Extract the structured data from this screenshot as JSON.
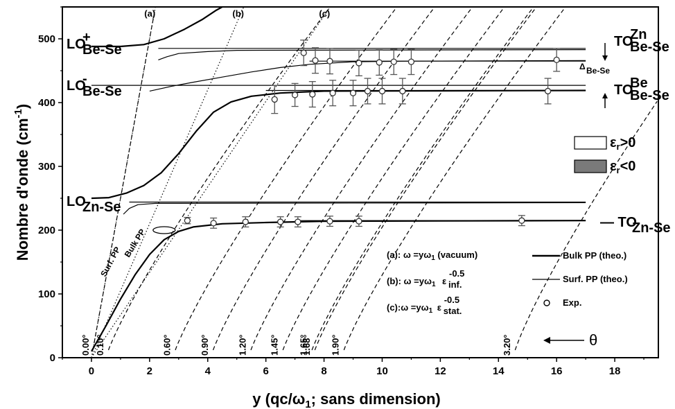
{
  "chart_data": {
    "type": "line",
    "xlabel": "y (qc/ω",
    "xlabel_sub": "1",
    "xlabel_tail": "; sans dimension)",
    "ylabel": "Nombre d'onde (cm",
    "ylabel_sup": "-1",
    "ylabel_tail": ")",
    "xlim": [
      -1,
      19.5
    ],
    "ylim": [
      0,
      550
    ],
    "x_ticks": [
      "0",
      "2",
      "4",
      "6",
      "8",
      "10",
      "12",
      "14",
      "16",
      "18"
    ],
    "y_ticks": [
      "0",
      "100",
      "200",
      "300",
      "400",
      "500"
    ],
    "mode_labels": {
      "lo_plus": {
        "base": "LO",
        "sup": "+",
        "sub": "Be-Se"
      },
      "lo_minus": {
        "base": "LO",
        "sup": "-",
        "sub": "Be-Se"
      },
      "lo_znse": {
        "base": "LO",
        "sub": "Zn-Se"
      },
      "to_zn": {
        "base": "TO",
        "sup": "Zn",
        "sub": "Be-Se"
      },
      "to_be": {
        "base": "TO",
        "sup": "Be",
        "sub": "Be-Se"
      },
      "to_znse": {
        "base": "— TO",
        "sub": "Zn-Se"
      },
      "delta": {
        "base": "Δ",
        "sub": "Be-Se"
      }
    },
    "light_line_labels": [
      "(a)",
      "(b)",
      "(c)"
    ],
    "light_line_slopes": [
      250,
      105,
      67
    ],
    "surf_pp_label": "Surf. PP",
    "bulk_pp_label": "Bulk PP",
    "epsilon_legend": [
      {
        "label": "ε",
        "sub": "r",
        "tail": ">0",
        "fill": "#ffffff"
      },
      {
        "label": "ε",
        "sub": "r",
        "tail": "<0",
        "fill": "#7a7a7a"
      }
    ],
    "formulas": [
      {
        "prefix": "(a): ω =yω",
        "sub": "1",
        "tail": " (vacuum)"
      },
      {
        "prefix": "(b): ω =yω",
        "sub": "1",
        "eps": "ε",
        "eps_sub": "inf.",
        "eps_sup": "-0.5"
      },
      {
        "prefix": "(c):ω =yω",
        "sub": "1",
        "eps": "ε",
        "eps_sub": "stat.",
        "eps_sup": "-0.5"
      }
    ],
    "legend": [
      {
        "label": "Bulk PP (theo.)",
        "style": "thick"
      },
      {
        "label": "Surf. PP (theo.)",
        "style": "thin"
      },
      {
        "label": "Exp.",
        "style": "circle"
      }
    ],
    "theta_label": "θ",
    "angles": [
      {
        "label": "0.00°",
        "x0": 0.0
      },
      {
        "label": "0.10°",
        "x0": 0.5
      },
      {
        "label": "0.60°",
        "x0": 2.8
      },
      {
        "label": "0.90°",
        "x0": 4.1
      },
      {
        "label": "1.20°",
        "x0": 5.4
      },
      {
        "label": "1.45°",
        "x0": 6.5
      },
      {
        "label": "1.65°",
        "x0": 7.5
      },
      {
        "label": "1.68°",
        "x0": 7.6
      },
      {
        "label": "1.90°",
        "x0": 8.6
      },
      {
        "label": "3.20°",
        "x0": 14.5
      }
    ],
    "reference_lines": [
      {
        "name": "LO+ Be-Se",
        "y": 485,
        "x_range": [
          2.3,
          17
        ]
      },
      {
        "name": "TO Zn Be-Se",
        "y": 465,
        "x_range": [
          7.5,
          17
        ]
      },
      {
        "name": "LO- Be-Se",
        "y": 427,
        "x_range": [
          0,
          17
        ]
      },
      {
        "name": "TO Be Be-Se",
        "y": 419,
        "x_range": [
          6,
          17
        ]
      },
      {
        "name": "LO Zn-Se",
        "y": 244,
        "x_range": [
          1.3,
          17
        ]
      },
      {
        "name": "TO Zn-Se",
        "y": 215,
        "x_range": [
          7,
          17
        ]
      }
    ],
    "bulk_pp_theory": [
      {
        "name": "upper",
        "points": [
          [
            0,
            488
          ],
          [
            1,
            488
          ],
          [
            1.8,
            491
          ],
          [
            2.5,
            500
          ],
          [
            3.2,
            515
          ],
          [
            3.8,
            530
          ],
          [
            4.3,
            545
          ],
          [
            4.5,
            550
          ]
        ]
      },
      {
        "name": "middle",
        "points": [
          [
            0,
            250
          ],
          [
            0.6,
            251
          ],
          [
            1.2,
            258
          ],
          [
            1.8,
            270
          ],
          [
            2.4,
            290
          ],
          [
            3.0,
            320
          ],
          [
            3.6,
            355
          ],
          [
            4.2,
            385
          ],
          [
            4.8,
            401
          ],
          [
            5.5,
            410
          ],
          [
            6.5,
            415
          ],
          [
            8,
            418
          ],
          [
            17,
            419
          ]
        ]
      },
      {
        "name": "lower",
        "points": [
          [
            0,
            10
          ],
          [
            0.5,
            50
          ],
          [
            1,
            92
          ],
          [
            1.5,
            130
          ],
          [
            2,
            162
          ],
          [
            2.5,
            185
          ],
          [
            3,
            198
          ],
          [
            3.5,
            205
          ],
          [
            4.5,
            210
          ],
          [
            6,
            212
          ],
          [
            8,
            214
          ],
          [
            17,
            215
          ]
        ]
      }
    ],
    "surf_pp_theory": [
      {
        "name": "upper",
        "points": [
          [
            2.3,
            467
          ],
          [
            2.6,
            472
          ],
          [
            3,
            477
          ],
          [
            4,
            480
          ],
          [
            5,
            482
          ],
          [
            17,
            483
          ]
        ]
      },
      {
        "name": "middle",
        "points": [
          [
            2,
            418
          ],
          [
            2.3,
            421
          ],
          [
            2.8,
            426
          ],
          [
            3.5,
            432
          ],
          [
            4.5,
            440
          ],
          [
            5.5,
            448
          ],
          [
            6.5,
            455
          ],
          [
            7.5,
            460
          ],
          [
            9,
            464
          ],
          [
            11,
            465
          ],
          [
            17,
            466
          ]
        ]
      },
      {
        "name": "lower",
        "points": [
          [
            1.1,
            225
          ],
          [
            1.3,
            234
          ],
          [
            1.6,
            240
          ],
          [
            2.2,
            242
          ],
          [
            17,
            243
          ]
        ]
      }
    ],
    "experimental": [
      {
        "x": 3.3,
        "y": 215,
        "err": 5
      },
      {
        "x": 4.2,
        "y": 211,
        "err": 8
      },
      {
        "x": 5.3,
        "y": 213,
        "err": 8
      },
      {
        "x": 6.5,
        "y": 213,
        "err": 8
      },
      {
        "x": 7.1,
        "y": 213,
        "err": 8
      },
      {
        "x": 8.2,
        "y": 214,
        "err": 8
      },
      {
        "x": 9.2,
        "y": 214,
        "err": 8
      },
      {
        "x": 14.8,
        "y": 215,
        "err": 8
      },
      {
        "x": 6.3,
        "y": 405,
        "err": 22
      },
      {
        "x": 7.0,
        "y": 412,
        "err": 18
      },
      {
        "x": 7.6,
        "y": 413,
        "err": 20
      },
      {
        "x": 8.3,
        "y": 415,
        "err": 20
      },
      {
        "x": 9.0,
        "y": 415,
        "err": 20
      },
      {
        "x": 9.5,
        "y": 418,
        "err": 20
      },
      {
        "x": 10.0,
        "y": 418,
        "err": 20
      },
      {
        "x": 10.7,
        "y": 418,
        "err": 20
      },
      {
        "x": 15.7,
        "y": 418,
        "err": 20
      },
      {
        "x": 7.3,
        "y": 478,
        "err": 20
      },
      {
        "x": 7.7,
        "y": 466,
        "err": 20
      },
      {
        "x": 8.2,
        "y": 465,
        "err": 20
      },
      {
        "x": 9.2,
        "y": 462,
        "err": 20
      },
      {
        "x": 9.9,
        "y": 463,
        "err": 20
      },
      {
        "x": 10.4,
        "y": 464,
        "err": 20
      },
      {
        "x": 11.0,
        "y": 464,
        "err": 20
      },
      {
        "x": 16.0,
        "y": 467,
        "err": 18
      }
    ]
  }
}
